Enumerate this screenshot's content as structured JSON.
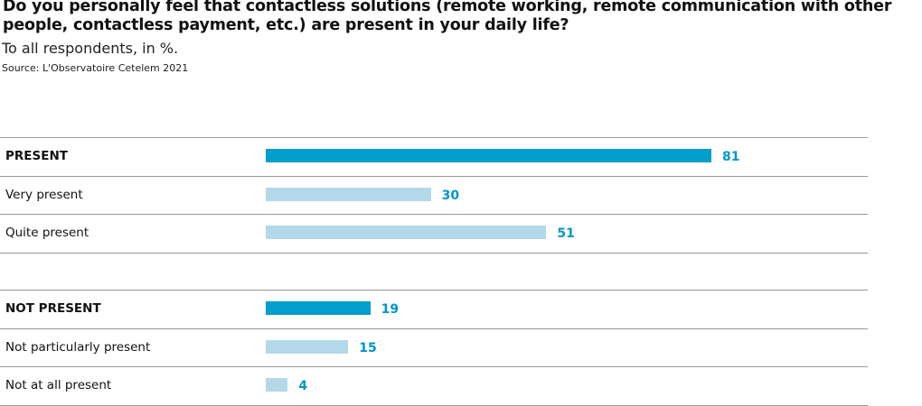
{
  "title": "Do you personally feel that contactless solutions (remote working, remote communication with other people, contactless payment, etc.) are present in your daily life?",
  "subtitle": "To all respondents, in %.",
  "source": "Source: L'Observatoire Cetelem 2021",
  "colors": {
    "total": "#009ecb",
    "detail": "#b3d8ea",
    "value": "#0096c8",
    "rule": "#999999"
  },
  "chart_data": {
    "type": "bar",
    "orientation": "horizontal",
    "title": "Do you personally feel that contactless solutions (remote working, remote communication with other people, contactless payment, etc.) are present in your daily life?",
    "unit": "%",
    "xlim": [
      0,
      100
    ],
    "groups": [
      {
        "rows": [
          {
            "label": "PRESENT",
            "value": 81,
            "total": true
          },
          {
            "label": "Very present",
            "value": 30,
            "total": false
          },
          {
            "label": "Quite present",
            "value": 51,
            "total": false
          }
        ]
      },
      {
        "rows": [
          {
            "label": "NOT PRESENT",
            "value": 19,
            "total": true
          },
          {
            "label": "Not particularly present",
            "value": 15,
            "total": false
          },
          {
            "label": "Not at all present",
            "value": 4,
            "total": false
          }
        ]
      }
    ]
  }
}
